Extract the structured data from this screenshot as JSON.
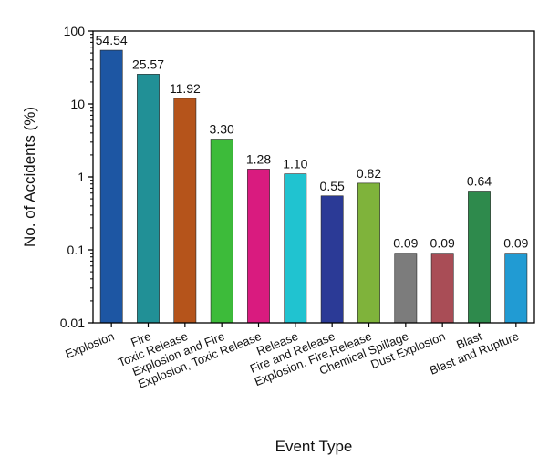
{
  "chart_data": {
    "type": "bar",
    "title": "",
    "xlabel": "Event Type",
    "ylabel": "No. of Accidents (%)",
    "yscale": "log",
    "ylim": [
      0.01,
      100
    ],
    "yticks": [
      {
        "value": 0.01,
        "label": "0.01"
      },
      {
        "value": 0.1,
        "label": "0.1"
      },
      {
        "value": 1,
        "label": "1"
      },
      {
        "value": 10,
        "label": "10"
      },
      {
        "value": 100,
        "label": "100"
      }
    ],
    "grid": false,
    "legend": "none",
    "categories": [
      "Explosion",
      "Fire",
      "Toxic Release",
      "Explosion and Fire",
      "Explosion, Toxic Release",
      "Release",
      "Fire and Release",
      "Explosion, Fire,Release",
      "Chemical Spillage",
      "Dust Explosion",
      "Blast",
      "Blast and Rupture"
    ],
    "values": [
      54.54,
      25.57,
      11.92,
      3.3,
      1.28,
      1.1,
      0.55,
      0.82,
      0.09,
      0.09,
      0.64,
      0.09
    ],
    "value_labels": [
      "54.54",
      "25.57",
      "11.92",
      "3.30",
      "1.28",
      "1.10",
      "0.55",
      "0.82",
      "0.09",
      "0.09",
      "0.64",
      "0.09"
    ],
    "colors": [
      "#1d56a3",
      "#219096",
      "#b5541b",
      "#3dbb3a",
      "#d91b7f",
      "#20c3d0",
      "#2b3a96",
      "#7fb33b",
      "#7c7c7c",
      "#a94d56",
      "#2e8a4c",
      "#219bd3"
    ]
  }
}
